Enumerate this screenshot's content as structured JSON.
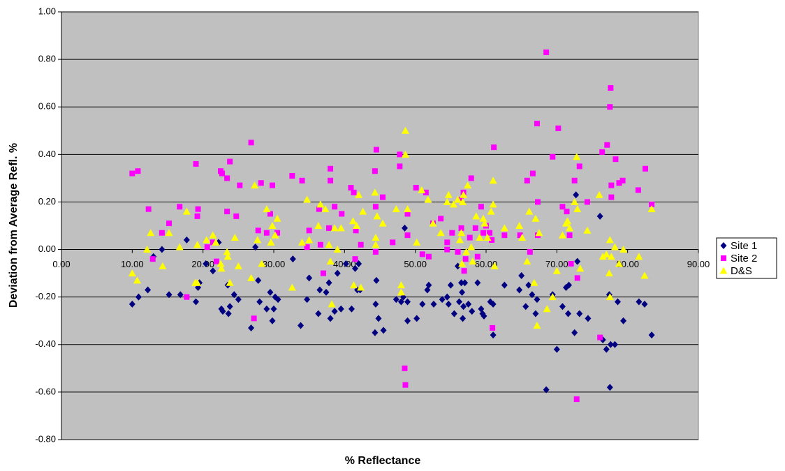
{
  "chart_data": {
    "type": "scatter",
    "xlabel": "% Reflectance",
    "ylabel": "Deviation from Average Refl. %",
    "xlim": [
      0,
      90
    ],
    "ylim": [
      -0.8,
      1.0
    ],
    "xticks": [
      {
        "value": 0,
        "label": "0.00"
      },
      {
        "value": 10,
        "label": "10.00"
      },
      {
        "value": 20,
        "label": "20.00"
      },
      {
        "value": 30,
        "label": "30.00"
      },
      {
        "value": 40,
        "label": "40.00"
      },
      {
        "value": 50,
        "label": "50.00"
      },
      {
        "value": 60,
        "label": "60.00"
      },
      {
        "value": 70,
        "label": "70.00"
      },
      {
        "value": 80,
        "label": "80.00"
      },
      {
        "value": 90,
        "label": "90.00"
      }
    ],
    "yticks": [
      {
        "value": -0.8,
        "label": "-0.80"
      },
      {
        "value": -0.6,
        "label": "-0.60"
      },
      {
        "value": -0.4,
        "label": "-0.40"
      },
      {
        "value": -0.2,
        "label": "-0.20"
      },
      {
        "value": 0,
        "label": "0.00"
      },
      {
        "value": 0.2,
        "label": "0.20"
      },
      {
        "value": 0.4,
        "label": "0.40"
      },
      {
        "value": 0.6,
        "label": "0.60"
      },
      {
        "value": 0.8,
        "label": "0.80"
      },
      {
        "value": 1.0,
        "label": "1.00"
      }
    ],
    "grid": true,
    "plot_background": "#c0c0c0",
    "legend": "right",
    "series": [
      {
        "name": "Site 1",
        "color": "#000080",
        "marker": "diamond",
        "x": [
          10,
          10.9,
          12.2,
          13,
          14.2,
          15.2,
          16.8,
          17.7,
          19,
          19.3,
          19.5,
          20.4,
          21.4,
          22.2,
          22.6,
          22.8,
          23.5,
          23.6,
          23.8,
          24.4,
          25,
          26.8,
          27.4,
          27.8,
          28,
          29,
          29.5,
          29.8,
          30,
          30.2,
          30.6,
          32.7,
          33.8,
          34.7,
          35,
          36.3,
          36.5,
          37.4,
          37.8,
          38,
          38.6,
          39,
          39.5,
          40.2,
          41,
          41.5,
          41.8,
          42,
          42.2,
          44.3,
          44.4,
          44.5,
          44.8,
          45.5,
          47.3,
          48,
          48.3,
          48.5,
          48.9,
          48.9,
          50.2,
          51,
          51.7,
          51.9,
          52.6,
          53.8,
          54.5,
          54.7,
          55,
          55.5,
          56,
          56.2,
          56.5,
          56.6,
          56.7,
          56.8,
          57,
          57.5,
          58,
          58.8,
          59.3,
          59.5,
          59.7,
          60.6,
          61,
          61,
          62.6,
          64.7,
          65,
          65.6,
          66,
          66.5,
          67,
          67.2,
          68.5,
          69.4,
          70,
          70.8,
          71.3,
          71.6,
          71.7,
          72.5,
          72.7,
          72.9,
          73.2,
          74.4,
          76.1,
          76.5,
          77,
          77.4,
          77.5,
          77.6,
          78.2,
          78.6,
          79.4,
          81.6,
          82.4,
          83.4
        ],
        "values": [
          -0.23,
          -0.2,
          -0.17,
          -0.03,
          0.0,
          -0.19,
          -0.19,
          0.04,
          -0.22,
          -0.16,
          -0.14,
          -0.06,
          -0.09,
          0.03,
          -0.25,
          -0.26,
          -0.15,
          -0.27,
          -0.24,
          -0.19,
          -0.21,
          -0.33,
          0.01,
          -0.13,
          -0.22,
          -0.25,
          -0.18,
          -0.3,
          -0.25,
          -0.2,
          -0.21,
          -0.04,
          -0.32,
          -0.21,
          -0.12,
          -0.27,
          -0.17,
          -0.18,
          -0.14,
          -0.29,
          -0.26,
          -0.1,
          -0.25,
          -0.06,
          -0.25,
          -0.08,
          -0.17,
          -0.06,
          -0.17,
          -0.35,
          -0.23,
          -0.13,
          -0.29,
          -0.34,
          -0.21,
          -0.22,
          -0.2,
          0.09,
          -0.22,
          -0.3,
          -0.29,
          -0.23,
          -0.17,
          -0.15,
          -0.23,
          -0.21,
          -0.2,
          -0.23,
          -0.15,
          -0.27,
          -0.07,
          -0.22,
          -0.14,
          -0.18,
          -0.29,
          -0.24,
          -0.14,
          -0.23,
          -0.26,
          -0.14,
          -0.25,
          -0.27,
          -0.28,
          -0.22,
          -0.23,
          -0.36,
          -0.15,
          -0.17,
          -0.11,
          -0.24,
          -0.15,
          -0.19,
          -0.27,
          -0.21,
          -0.59,
          -0.19,
          -0.42,
          -0.24,
          -0.16,
          -0.27,
          -0.15,
          -0.35,
          0.23,
          -0.05,
          -0.27,
          -0.29,
          0.14,
          -0.38,
          -0.42,
          -0.19,
          -0.58,
          -0.4,
          -0.4,
          -0.22,
          -0.3,
          -0.22,
          -0.23,
          -0.36
        ]
      },
      {
        "name": "Site 2",
        "color": "#ff00ff",
        "marker": "square",
        "x": [
          10,
          10.8,
          12.3,
          12.9,
          14.2,
          15.2,
          16.7,
          17.7,
          19,
          19.2,
          19.3,
          20.6,
          21.4,
          21.9,
          22.5,
          22.7,
          23.4,
          23.4,
          23.8,
          24.7,
          25.2,
          26.8,
          27.2,
          27.8,
          28.2,
          29,
          29.5,
          29.8,
          30.5,
          32.6,
          34,
          34.7,
          35,
          36.4,
          36.6,
          37,
          37.8,
          38,
          38,
          38.6,
          39.6,
          40.9,
          41.3,
          41.5,
          41.6,
          42.3,
          44.3,
          44.4,
          44.4,
          44.5,
          45.4,
          46.8,
          47.8,
          47.8,
          48.5,
          48.6,
          48.9,
          48.9,
          50.1,
          51,
          51.5,
          51.9,
          52.5,
          53.6,
          54.5,
          54.5,
          55.2,
          56,
          56.4,
          56.5,
          56.8,
          56.9,
          57.1,
          57.7,
          57.9,
          58.5,
          58.8,
          59.3,
          59.6,
          60,
          60.5,
          60.8,
          60.9,
          61.1,
          62.6,
          64.8,
          65.8,
          66.2,
          66.6,
          67.2,
          67.3,
          67.3,
          68.5,
          69.4,
          70.2,
          70.8,
          71.4,
          71.8,
          72,
          72.5,
          72.8,
          72.9,
          73.2,
          74.3,
          76.1,
          76.4,
          77.1,
          77.5,
          77.6,
          77.7,
          77.7,
          78.3,
          78.8,
          79.3,
          81.5,
          82.5,
          83.4
        ],
        "values": [
          0.32,
          0.33,
          0.17,
          -0.04,
          0.07,
          0.11,
          0.18,
          -0.2,
          0.36,
          0.14,
          0.17,
          0.01,
          0.03,
          -0.05,
          0.33,
          0.32,
          0.3,
          0.16,
          0.37,
          0.14,
          0.27,
          0.45,
          -0.29,
          0.08,
          0.28,
          0.07,
          0.15,
          0.27,
          0.07,
          0.31,
          0.29,
          0.01,
          0.08,
          0.17,
          0.02,
          -0.1,
          0.09,
          0.34,
          0.29,
          0.18,
          0.15,
          0.26,
          0.24,
          -0.04,
          0.08,
          0.02,
          0.33,
          0.18,
          -0.01,
          0.42,
          0.22,
          0.03,
          0.4,
          0.35,
          -0.5,
          -0.57,
          0.06,
          0.15,
          0.26,
          -0.02,
          0.24,
          -0.03,
          0.11,
          0.13,
          0.0,
          0.03,
          0.07,
          -0.01,
          0.21,
          0.09,
          0.24,
          -0.09,
          -0.04,
          0.05,
          0.3,
          0.09,
          -0.03,
          0.18,
          0.07,
          0.1,
          0.07,
          0.04,
          -0.33,
          0.43,
          0.06,
          0.06,
          0.29,
          -0.01,
          0.32,
          0.53,
          0.2,
          0.06,
          0.83,
          0.39,
          0.51,
          0.18,
          0.16,
          0.06,
          -0.06,
          0.29,
          -0.63,
          -0.12,
          0.35,
          0.2,
          -0.37,
          0.41,
          0.44,
          0.6,
          0.68,
          0.27,
          0.22,
          0.38,
          0.28,
          0.29,
          0.25,
          0.34,
          0.19
        ]
      },
      {
        "name": "D&S",
        "color": "#ffff00",
        "marker": "triangle",
        "x": [
          10,
          10.7,
          12.1,
          12.6,
          14.3,
          15.2,
          16.7,
          17.7,
          18.9,
          19.2,
          19.2,
          20.5,
          21.4,
          21.8,
          22.5,
          22.6,
          23.4,
          23.5,
          23.8,
          24.5,
          25,
          26.8,
          27.3,
          27.7,
          28.3,
          29,
          29.6,
          29.8,
          30.2,
          30.5,
          32.6,
          34,
          34.7,
          35,
          36.3,
          36.6,
          37.3,
          37.8,
          38,
          38.2,
          38.6,
          39,
          39.5,
          41.2,
          41.3,
          41.7,
          42,
          42.3,
          42.6,
          44.3,
          44.4,
          44.4,
          44.6,
          45.4,
          47.3,
          48,
          48,
          48.6,
          48.6,
          48.9,
          50.2,
          50.9,
          51.8,
          52.5,
          53.6,
          54.5,
          54.7,
          55.4,
          56,
          56.3,
          56.5,
          56.6,
          56.7,
          56.8,
          57.2,
          57.4,
          57.9,
          58.1,
          58.6,
          59.1,
          59.6,
          59.8,
          60.2,
          60.7,
          61,
          61,
          61.2,
          62.6,
          64.7,
          65.1,
          65.8,
          66.1,
          66.8,
          67,
          67.2,
          67.5,
          68.6,
          69.4,
          70,
          70.8,
          71.3,
          71.5,
          71.8,
          72.5,
          72.8,
          72.9,
          73.3,
          74.3,
          76,
          76.5,
          77,
          77.4,
          77.5,
          77.5,
          77.7,
          78.2,
          78.8,
          79.4,
          81.6,
          82.4,
          83.4
        ],
        "values": [
          -0.1,
          -0.13,
          0.0,
          0.07,
          -0.07,
          0.07,
          0.01,
          0.16,
          -0.14,
          0.02,
          -0.14,
          0.04,
          0.06,
          0.03,
          -0.06,
          -0.08,
          -0.01,
          -0.03,
          -0.14,
          0.05,
          -0.07,
          -0.12,
          0.27,
          0.04,
          -0.06,
          0.17,
          0.03,
          0.1,
          0.06,
          0.13,
          -0.16,
          0.03,
          0.21,
          0.04,
          0.1,
          0.19,
          0.17,
          0.02,
          -0.05,
          -0.23,
          0.09,
          0.0,
          0.09,
          0.12,
          -0.15,
          0.1,
          0.23,
          -0.16,
          0.16,
          0.24,
          0.05,
          0.02,
          0.14,
          0.11,
          0.17,
          -0.15,
          -0.18,
          0.5,
          0.4,
          0.17,
          0.03,
          0.25,
          0.21,
          0.11,
          0.07,
          0.2,
          0.23,
          0.19,
          0.21,
          0.04,
          0.07,
          -0.06,
          0.2,
          0.23,
          -0.01,
          0.27,
          0.01,
          -0.05,
          0.14,
          0.05,
          0.13,
          0.11,
          0.05,
          0.16,
          0.29,
          0.19,
          -0.07,
          0.09,
          0.1,
          0.05,
          -0.05,
          0.16,
          -0.14,
          0.13,
          -0.32,
          0.07,
          -0.25,
          -0.2,
          -0.09,
          0.06,
          0.11,
          0.12,
          0.09,
          0.2,
          0.39,
          0.17,
          -0.08,
          0.08,
          0.23,
          -0.03,
          -0.02,
          -0.1,
          0.04,
          -0.2,
          -0.03,
          0.01,
          -0.06,
          0.0,
          -0.03,
          -0.11,
          0.17
        ]
      }
    ]
  }
}
